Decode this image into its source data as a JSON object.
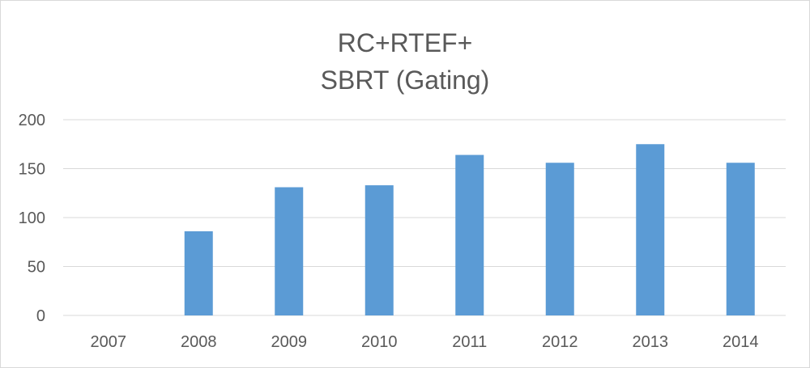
{
  "chart_data": {
    "type": "bar",
    "title_lines": [
      "RC+RTEF+",
      "SBRT (Gating)"
    ],
    "categories": [
      "2007",
      "2008",
      "2009",
      "2010",
      "2011",
      "2012",
      "2013",
      "2014"
    ],
    "values": [
      0,
      86,
      131,
      133,
      164,
      156,
      175,
      156
    ],
    "yticks": [
      0,
      50,
      100,
      150,
      200
    ],
    "ylim": [
      0,
      200
    ],
    "grid": true,
    "legend": "none",
    "colors": {
      "bar": "#5b9bd5",
      "grid": "#d9d9d9",
      "text": "#595959"
    }
  }
}
